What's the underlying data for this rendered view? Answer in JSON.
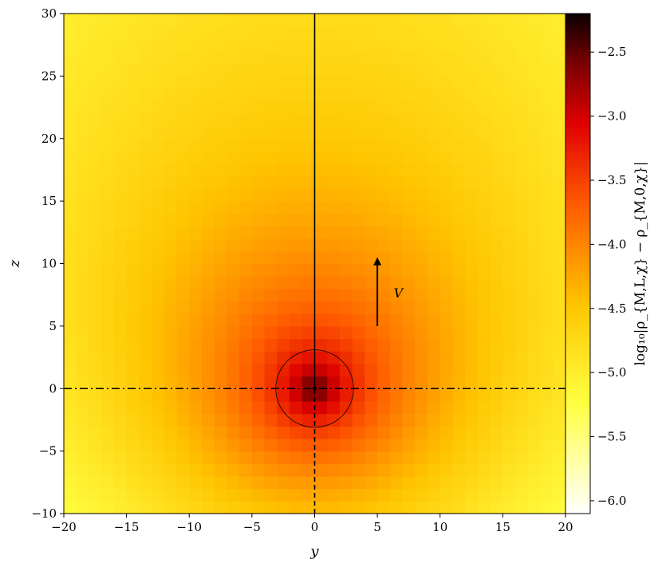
{
  "chart_data": {
    "type": "heatmap",
    "title": "",
    "xlabel": "y",
    "ylabel": "z",
    "xlim": [
      -20,
      20
    ],
    "ylim": [
      -10,
      30
    ],
    "xticks": [
      -20,
      -15,
      -10,
      -5,
      0,
      5,
      10,
      15,
      20
    ],
    "yticks": [
      -10,
      -5,
      0,
      5,
      10,
      15,
      20,
      25,
      30
    ],
    "xtick_labels": [
      "−20",
      "−15",
      "−10",
      "−5",
      "0",
      "5",
      "10",
      "15",
      "20"
    ],
    "ytick_labels": [
      "−10",
      "−5",
      "0",
      "5",
      "10",
      "15",
      "20",
      "25",
      "30"
    ],
    "grid": false,
    "colormap": "hot_r",
    "colorbar": {
      "label": "log₁₀|ρ_{M,L,χ} − ρ_{M,0,χ}|",
      "range": [
        -6.1,
        -2.2
      ],
      "ticks": [
        -6.0,
        -5.5,
        -5.0,
        -4.5,
        -4.0,
        -3.5,
        -3.0,
        -2.5
      ],
      "tick_labels": [
        "−6.0",
        "−5.5",
        "−5.0",
        "−4.5",
        "−4.0",
        "−3.5",
        "−3.0",
        "−2.5"
      ]
    },
    "source_point": [
      0,
      0
    ],
    "circle": {
      "center": [
        0,
        0
      ],
      "radius": 3.1
    },
    "lines": [
      {
        "kind": "solid",
        "from": [
          0,
          0
        ],
        "to": [
          0,
          30
        ]
      },
      {
        "kind": "dashed",
        "from": [
          0,
          -10
        ],
        "to": [
          0,
          0
        ]
      },
      {
        "kind": "dash-dot",
        "from": [
          -20,
          0
        ],
        "to": [
          20,
          0
        ]
      }
    ],
    "annotations": [
      {
        "text": "V",
        "arrow_from": [
          5,
          5
        ],
        "arrow_to": [
          5,
          10.5
        ],
        "label_at": [
          6.3,
          7.3
        ]
      }
    ]
  }
}
